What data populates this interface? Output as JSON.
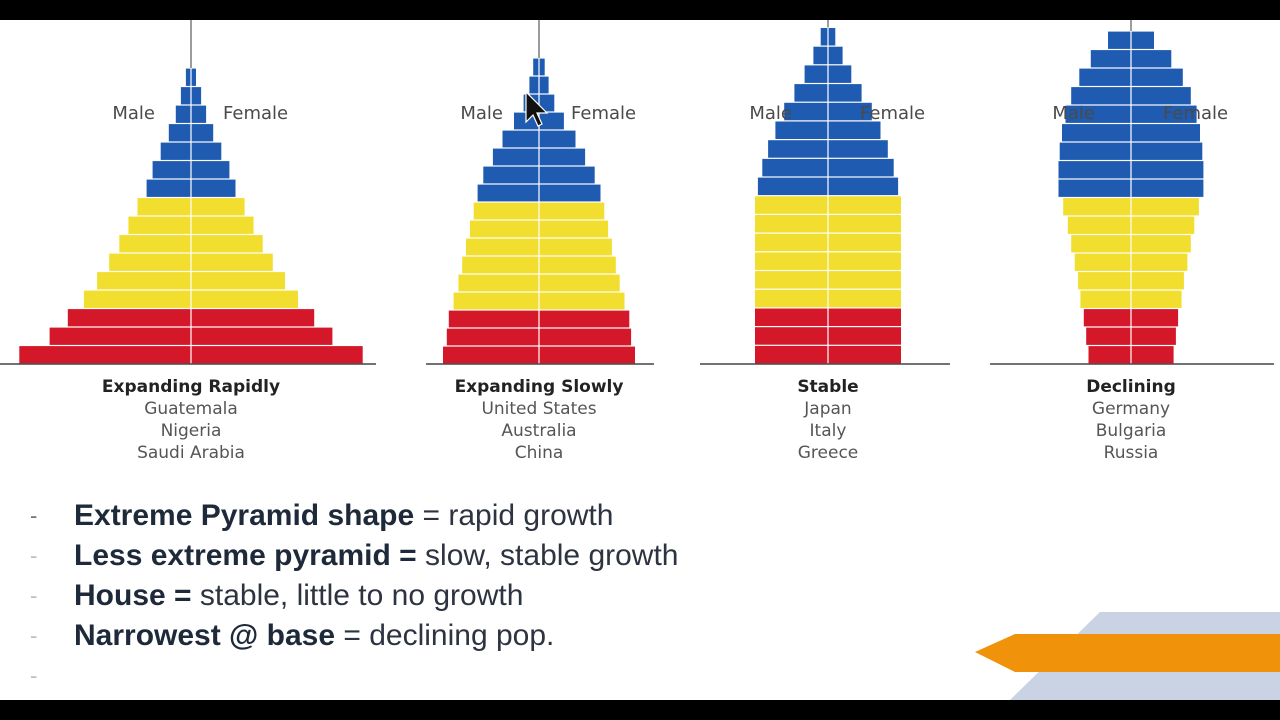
{
  "colors": {
    "old_age": "#1f5bb0",
    "working_age": "#f2de2e",
    "young": "#d4182a",
    "axis": "#7a7a7a",
    "accent_orange": "#f0930b",
    "accent_slate": "#c9d3e3"
  },
  "chart_data": [
    {
      "type": "bar",
      "title": "Expanding Rapidly",
      "countries": [
        "Guatemala",
        "Nigeria",
        "Saudi Arabia"
      ],
      "left_label": "Male",
      "right_label": "Female",
      "bars_top_to_bottom": [
        {
          "half": 0.5,
          "group": "old"
        },
        {
          "half": 1.0,
          "group": "old"
        },
        {
          "half": 1.5,
          "group": "old"
        },
        {
          "half": 2.2,
          "group": "old"
        },
        {
          "half": 3.0,
          "group": "old"
        },
        {
          "half": 3.8,
          "group": "old"
        },
        {
          "half": 4.4,
          "group": "old"
        },
        {
          "half": 5.3,
          "group": "working"
        },
        {
          "half": 6.2,
          "group": "working"
        },
        {
          "half": 7.1,
          "group": "working"
        },
        {
          "half": 8.1,
          "group": "working"
        },
        {
          "half": 9.3,
          "group": "working"
        },
        {
          "half": 10.6,
          "group": "working"
        },
        {
          "half": 12.2,
          "group": "young"
        },
        {
          "half": 14.0,
          "group": "young"
        },
        {
          "half": 17.0,
          "group": "young"
        }
      ]
    },
    {
      "type": "bar",
      "title": "Expanding Slowly",
      "countries": [
        "United States",
        "Australia",
        "China"
      ],
      "left_label": "Male",
      "right_label": "Female",
      "bars_top_to_bottom": [
        {
          "half": 0.6,
          "group": "old"
        },
        {
          "half": 1.0,
          "group": "old"
        },
        {
          "half": 1.6,
          "group": "old"
        },
        {
          "half": 2.6,
          "group": "old"
        },
        {
          "half": 3.8,
          "group": "old"
        },
        {
          "half": 4.8,
          "group": "old"
        },
        {
          "half": 5.8,
          "group": "old"
        },
        {
          "half": 6.4,
          "group": "old"
        },
        {
          "half": 6.8,
          "group": "working"
        },
        {
          "half": 7.2,
          "group": "working"
        },
        {
          "half": 7.6,
          "group": "working"
        },
        {
          "half": 8.0,
          "group": "working"
        },
        {
          "half": 8.4,
          "group": "working"
        },
        {
          "half": 8.9,
          "group": "working"
        },
        {
          "half": 9.4,
          "group": "young"
        },
        {
          "half": 9.6,
          "group": "young"
        },
        {
          "half": 10.0,
          "group": "young"
        }
      ]
    },
    {
      "type": "bar",
      "title": "Stable",
      "countries": [
        "Japan",
        "Italy",
        "Greece"
      ],
      "left_label": "Male",
      "right_label": "Female",
      "bars_top_to_bottom": [
        {
          "half": 0.5,
          "group": "old"
        },
        {
          "half": 1.0,
          "group": "old"
        },
        {
          "half": 1.6,
          "group": "old"
        },
        {
          "half": 2.3,
          "group": "old"
        },
        {
          "half": 3.0,
          "group": "old"
        },
        {
          "half": 3.6,
          "group": "old"
        },
        {
          "half": 4.1,
          "group": "old"
        },
        {
          "half": 4.5,
          "group": "old"
        },
        {
          "half": 4.8,
          "group": "old"
        },
        {
          "half": 5.0,
          "group": "working"
        },
        {
          "half": 5.0,
          "group": "working"
        },
        {
          "half": 5.0,
          "group": "working"
        },
        {
          "half": 5.0,
          "group": "working"
        },
        {
          "half": 5.0,
          "group": "working"
        },
        {
          "half": 5.0,
          "group": "working"
        },
        {
          "half": 5.0,
          "group": "young"
        },
        {
          "half": 5.0,
          "group": "young"
        },
        {
          "half": 5.0,
          "group": "young"
        }
      ]
    },
    {
      "type": "bar",
      "title": "Declining",
      "countries": [
        "Germany",
        "Bulgaria",
        "Russia"
      ],
      "left_label": "Male",
      "right_label": "Female",
      "bars_top_to_bottom": [
        {
          "half": 2.0,
          "group": "old"
        },
        {
          "half": 3.5,
          "group": "old"
        },
        {
          "half": 4.5,
          "group": "old"
        },
        {
          "half": 5.2,
          "group": "old"
        },
        {
          "half": 5.7,
          "group": "old"
        },
        {
          "half": 6.0,
          "group": "old"
        },
        {
          "half": 6.2,
          "group": "old"
        },
        {
          "half": 6.3,
          "group": "old"
        },
        {
          "half": 6.3,
          "group": "old"
        },
        {
          "half": 5.9,
          "group": "working"
        },
        {
          "half": 5.5,
          "group": "working"
        },
        {
          "half": 5.2,
          "group": "working"
        },
        {
          "half": 4.9,
          "group": "working"
        },
        {
          "half": 4.6,
          "group": "working"
        },
        {
          "half": 4.4,
          "group": "working"
        },
        {
          "half": 4.1,
          "group": "young"
        },
        {
          "half": 3.9,
          "group": "young"
        },
        {
          "half": 3.7,
          "group": "young"
        }
      ]
    }
  ],
  "bullets": [
    {
      "dash": "-",
      "bold": "Extreme Pyramid shape",
      "text": " = rapid growth"
    },
    {
      "dash": "-",
      "bold": "Less extreme pyramid =",
      "text": " slow, stable growth"
    },
    {
      "dash": "-",
      "bold": "House =",
      "text": " stable, little to no growth"
    },
    {
      "dash": "-",
      "bold": "Narrowest @ base",
      "text": " = declining pop."
    },
    {
      "dash": "-",
      "bold": "",
      "text": ""
    }
  ]
}
